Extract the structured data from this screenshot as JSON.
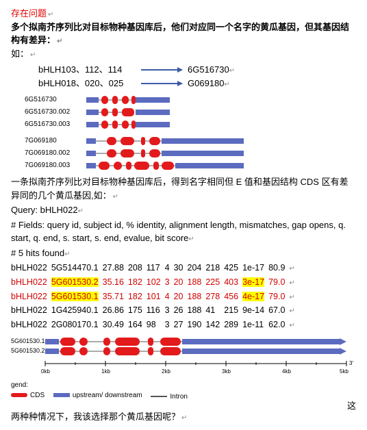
{
  "heading": "存在问题",
  "intro1": "多个拟南芥序列比对目标物种基因库后，他们对应同一个名字的黄瓜基因，但其基因结构有差异：",
  "intro2": "如：",
  "mappings": [
    {
      "left": "bHLH103、112、114",
      "right": "6G516730"
    },
    {
      "left": "bHLH018、020、025",
      "right": "G069180"
    }
  ],
  "gene_group1_labels": [
    "6G516730",
    "6G516730.002",
    "6G516730.003"
  ],
  "gene_group2_labels": [
    "7G069180",
    "7G069180.002",
    "7G069180.003"
  ],
  "mid_text": "一条拟南芥序列比对目标物种基因库后，得到名字相同但 E 值和基因结构 CDS 区有差异同的几个黄瓜基因,如：",
  "query_line": "Query: bHLH022",
  "fields_line": "# Fields: query id, subject id, % identity, alignment length, mismatches, gap opens, q. start, q. end, s. start, s. end, evalue, bit score",
  "hits_line": "# 5 hits found",
  "table": {
    "rows": [
      {
        "cells": [
          "bHLH022",
          "5G514470.1",
          "27.88",
          "208",
          "117",
          "4",
          "30",
          "204",
          "218",
          "425",
          "1e-17",
          "80.9"
        ],
        "red": false,
        "hl_subject": false,
        "hl_evalue": false
      },
      {
        "cells": [
          "bHLH022",
          "5G601530.2",
          "35.16",
          "182",
          "102",
          "3",
          "20",
          "188",
          "225",
          "403",
          "3e-17",
          "79.0"
        ],
        "red": true,
        "hl_subject": true,
        "hl_evalue": true
      },
      {
        "cells": [
          "bHLH022",
          "5G601530.1",
          "35.71",
          "182",
          "101",
          "4",
          "20",
          "188",
          "278",
          "456",
          "4e-17",
          "79.0"
        ],
        "red": true,
        "hl_subject": true,
        "hl_evalue": true
      },
      {
        "cells": [
          "bHLH022",
          "1G425940.1",
          "26.86",
          "175",
          "116",
          "3",
          "26",
          "188",
          "41",
          "215",
          "9e-14",
          "67.0"
        ],
        "red": false,
        "hl_subject": false,
        "hl_evalue": false
      },
      {
        "cells": [
          "bHLH022",
          "2G080170.1",
          "30.49",
          "164",
          "98",
          "3",
          "27",
          "190",
          "142",
          "289",
          "1e-11",
          "62.0"
        ],
        "red": false,
        "hl_subject": false,
        "hl_evalue": false
      }
    ]
  },
  "bottom_gene_labels": [
    "5G601530.1",
    "5G601530.2"
  ],
  "ruler_ticks": [
    "0kb",
    "1kb",
    "2kb",
    "3kb",
    "4kb",
    "5kb"
  ],
  "legend": {
    "title_frag": "gend:",
    "cds_label": "CDS",
    "updown_label": "upstream/ downstream",
    "intron_label": "Intron"
  },
  "trailing_char": "这",
  "bottom_question": "两种种情况下，我该选择那个黄瓜基因呢？",
  "colors": {
    "exon": "#e31a1c",
    "flank": "#5b6bbf",
    "intron": "#555555",
    "arrow": "#3b5ba5"
  }
}
